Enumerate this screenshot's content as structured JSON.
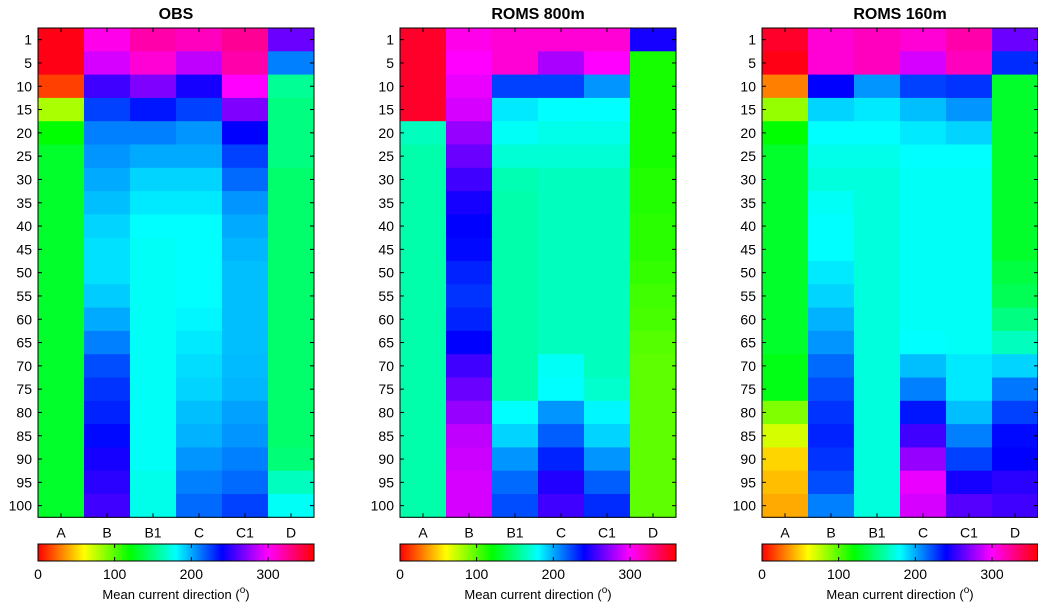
{
  "chart_data": {
    "type": "heatmap",
    "colormap": "hsv",
    "x_categories": [
      "A",
      "B",
      "B1",
      "C",
      "C1",
      "D"
    ],
    "y_categories": [
      "1",
      "5",
      "10",
      "15",
      "20",
      "25",
      "30",
      "35",
      "40",
      "45",
      "50",
      "55",
      "60",
      "65",
      "70",
      "75",
      "80",
      "85",
      "90",
      "95",
      "100"
    ],
    "colorbar": {
      "min": 0,
      "max": 360,
      "ticks": [
        0,
        100,
        200,
        300
      ],
      "label": "Mean current direction (",
      "label_superscript": "o",
      "label_end": ")"
    },
    "panels": [
      {
        "title": "OBS",
        "values": [
          [
            355,
            305,
            320,
            315,
            325,
            265
          ],
          [
            355,
            290,
            310,
            285,
            320,
            210
          ],
          [
            15,
            255,
            270,
            245,
            300,
            155
          ],
          [
            80,
            225,
            235,
            225,
            270,
            150
          ],
          [
            120,
            210,
            210,
            205,
            240,
            150
          ],
          [
            130,
            205,
            200,
            200,
            225,
            150
          ],
          [
            130,
            200,
            190,
            190,
            215,
            145
          ],
          [
            130,
            195,
            185,
            185,
            205,
            145
          ],
          [
            130,
            190,
            180,
            180,
            200,
            145
          ],
          [
            130,
            187,
            178,
            180,
            197,
            145
          ],
          [
            130,
            187,
            178,
            180,
            195,
            145
          ],
          [
            130,
            192,
            178,
            180,
            195,
            145
          ],
          [
            130,
            200,
            178,
            182,
            195,
            145
          ],
          [
            130,
            210,
            178,
            185,
            195,
            145
          ],
          [
            130,
            222,
            178,
            188,
            196,
            145
          ],
          [
            130,
            228,
            178,
            190,
            197,
            145
          ],
          [
            130,
            232,
            178,
            195,
            202,
            145
          ],
          [
            130,
            238,
            178,
            198,
            205,
            145
          ],
          [
            130,
            245,
            178,
            205,
            210,
            148
          ],
          [
            130,
            250,
            175,
            210,
            215,
            165
          ],
          [
            130,
            255,
            175,
            215,
            225,
            178
          ]
        ]
      },
      {
        "title": "ROMS 800m",
        "values": [
          [
            350,
            305,
            310,
            310,
            310,
            245
          ],
          [
            350,
            300,
            310,
            280,
            300,
            115
          ],
          [
            350,
            295,
            225,
            225,
            205,
            115
          ],
          [
            350,
            290,
            185,
            180,
            180,
            115
          ],
          [
            165,
            275,
            178,
            175,
            175,
            115
          ],
          [
            160,
            265,
            170,
            170,
            170,
            115
          ],
          [
            160,
            255,
            162,
            165,
            165,
            112
          ],
          [
            160,
            245,
            160,
            165,
            165,
            112
          ],
          [
            160,
            240,
            160,
            165,
            165,
            110
          ],
          [
            160,
            238,
            160,
            165,
            165,
            110
          ],
          [
            160,
            232,
            160,
            165,
            165,
            108
          ],
          [
            160,
            228,
            160,
            165,
            165,
            105
          ],
          [
            160,
            232,
            160,
            165,
            165,
            103
          ],
          [
            160,
            240,
            160,
            165,
            165,
            100
          ],
          [
            160,
            255,
            160,
            178,
            165,
            98
          ],
          [
            160,
            265,
            160,
            180,
            168,
            98
          ],
          [
            160,
            275,
            180,
            205,
            182,
            98
          ],
          [
            160,
            285,
            190,
            218,
            190,
            98
          ],
          [
            160,
            288,
            205,
            232,
            205,
            98
          ],
          [
            160,
            290,
            215,
            248,
            218,
            98
          ],
          [
            160,
            290,
            222,
            255,
            230,
            98
          ]
        ]
      },
      {
        "title": "ROMS 160m",
        "values": [
          [
            350,
            310,
            315,
            310,
            320,
            265
          ],
          [
            355,
            310,
            315,
            290,
            315,
            230
          ],
          [
            30,
            240,
            205,
            225,
            228,
            130
          ],
          [
            85,
            190,
            185,
            195,
            205,
            130
          ],
          [
            120,
            180,
            180,
            185,
            190,
            130
          ],
          [
            130,
            175,
            175,
            180,
            180,
            130
          ],
          [
            130,
            172,
            172,
            178,
            178,
            130
          ],
          [
            130,
            178,
            172,
            178,
            178,
            130
          ],
          [
            130,
            180,
            172,
            178,
            178,
            130
          ],
          [
            130,
            180,
            172,
            178,
            178,
            130
          ],
          [
            130,
            185,
            172,
            178,
            178,
            135
          ],
          [
            130,
            190,
            172,
            178,
            178,
            140
          ],
          [
            130,
            198,
            172,
            178,
            178,
            150
          ],
          [
            130,
            205,
            172,
            180,
            178,
            165
          ],
          [
            125,
            215,
            172,
            195,
            185,
            190
          ],
          [
            125,
            222,
            172,
            210,
            185,
            212
          ],
          [
            90,
            228,
            172,
            235,
            195,
            225
          ],
          [
            70,
            232,
            172,
            255,
            210,
            238
          ],
          [
            50,
            228,
            172,
            275,
            225,
            240
          ],
          [
            45,
            222,
            172,
            295,
            245,
            250
          ],
          [
            40,
            210,
            172,
            290,
            260,
            255
          ]
        ]
      }
    ]
  }
}
